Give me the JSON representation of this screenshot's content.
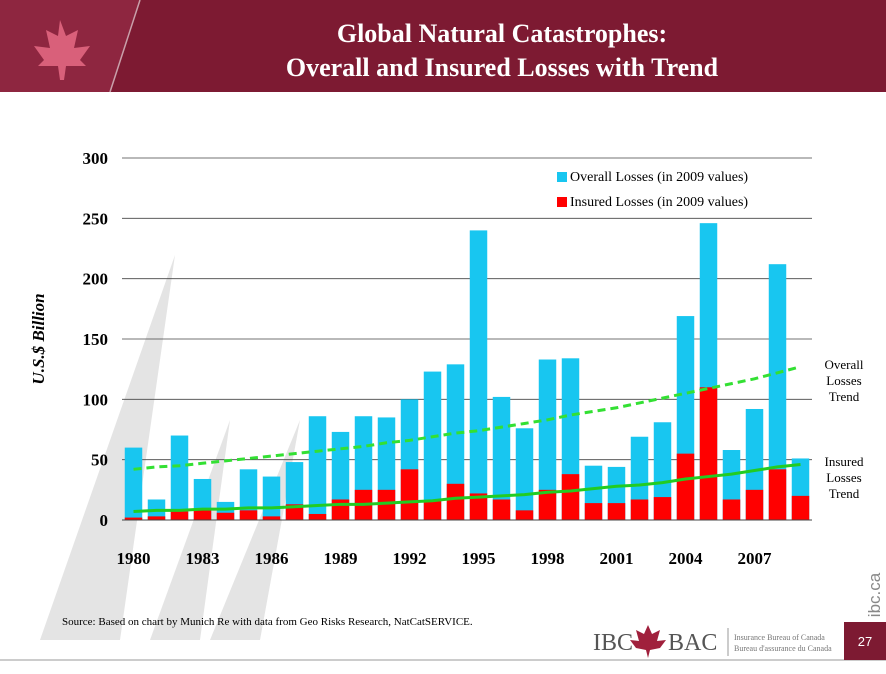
{
  "slide": {
    "title": [
      "Global Natural Catastrophes:",
      "Overall and Insured Losses with Trend"
    ],
    "footer_org": [
      "Insurance Bureau of Canada",
      "Bureau d'assurance du Canada"
    ],
    "logo_text": [
      "IBC",
      "BAC"
    ],
    "site": "ibc.ca",
    "page_number": "27"
  },
  "chart_data": {
    "type": "bar",
    "ylabel": "U.S.$ Billion",
    "source": "Source: Based on chart by Munich Re with data from Geo Risks Research, NatCatSERVICE.",
    "categories": [
      "1980",
      null,
      null,
      "1983",
      null,
      null,
      "1986",
      null,
      null,
      "1989",
      null,
      null,
      "1992",
      null,
      null,
      "1995",
      null,
      null,
      "1998",
      null,
      null,
      "2001",
      null,
      null,
      "2004",
      null,
      null,
      "2007",
      null,
      null
    ],
    "series": [
      {
        "name": "Overall Losses (in 2009 values)",
        "color": "#18c6f0",
        "style": "bar",
        "values": [
          60,
          17,
          70,
          34,
          15,
          42,
          36,
          48,
          86,
          73,
          86,
          85,
          100,
          123,
          129,
          240,
          102,
          76,
          133,
          134,
          45,
          44,
          69,
          81,
          169,
          246,
          58,
          92,
          212,
          51
        ]
      },
      {
        "name": "Insured Losses (in 2009 values)",
        "color": "#ff0000",
        "style": "bar",
        "values": [
          2,
          3,
          7,
          8,
          6,
          8,
          3,
          13,
          5,
          17,
          25,
          25,
          42,
          16,
          30,
          22,
          17,
          8,
          25,
          38,
          14,
          14,
          17,
          19,
          55,
          110,
          17,
          25,
          42,
          20
        ]
      },
      {
        "name": "Overall Losses Trend",
        "color": "#33e033",
        "style": "dashed",
        "values": [
          42,
          44,
          45,
          47,
          49,
          51,
          53,
          55,
          57,
          59,
          61,
          64,
          66,
          69,
          72,
          74,
          77,
          80,
          83,
          87,
          90,
          93,
          97,
          101,
          105,
          109,
          113,
          117,
          122,
          127
        ]
      },
      {
        "name": "Insured Losses Trend",
        "color": "#22cc22",
        "style": "solid",
        "values": [
          7,
          8,
          8,
          9,
          9,
          10,
          10,
          11,
          12,
          13,
          13,
          14,
          15,
          16,
          18,
          19,
          20,
          21,
          23,
          24,
          26,
          28,
          29,
          31,
          34,
          36,
          38,
          41,
          44,
          46
        ]
      }
    ],
    "ylim": [
      0,
      300
    ],
    "yticks": [
      0,
      50,
      100,
      150,
      200,
      250,
      300
    ],
    "grid": true
  }
}
